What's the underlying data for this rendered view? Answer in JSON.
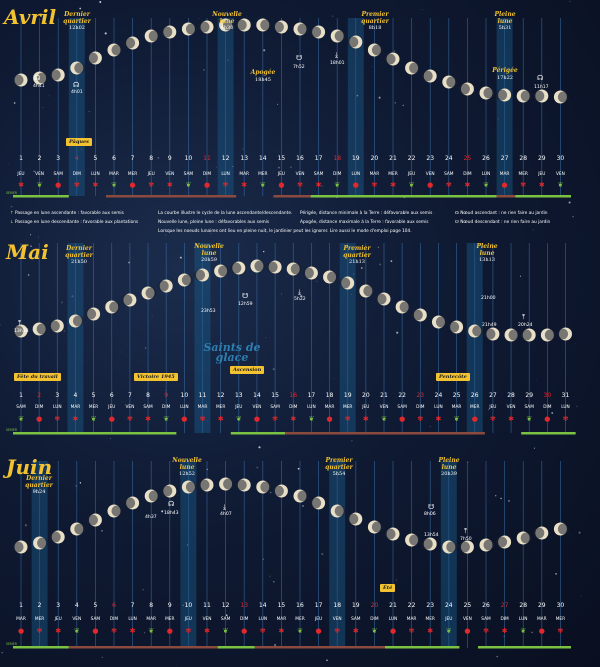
{
  "months": [
    {
      "name": "Avril",
      "days": [
        "1",
        "2",
        "3",
        "4",
        "5",
        "6",
        "7",
        "8",
        "9",
        "10",
        "11",
        "12",
        "13",
        "14",
        "15",
        "16",
        "17",
        "18",
        "19",
        "20",
        "21",
        "22",
        "23",
        "24",
        "25",
        "26",
        "27",
        "28",
        "29",
        "30"
      ],
      "weekdays": [
        "JEU",
        "VEN",
        "SAM",
        "DIM",
        "LUN",
        "MAR",
        "MER",
        "JEU",
        "VEN",
        "SAM",
        "DIM",
        "LUN",
        "MAR",
        "MER",
        "JEU",
        "VEN",
        "SAM",
        "DIM",
        "LUN",
        "MAR",
        "MER",
        "JEU",
        "VEN",
        "SAM",
        "DIM",
        "LUN",
        "MAR",
        "MER",
        "JEU",
        "VEN"
      ],
      "red_days": [
        4,
        11,
        18,
        25
      ],
      "moon_height": [
        40,
        42,
        45,
        52,
        62,
        70,
        77,
        84,
        88,
        91,
        93,
        95,
        95,
        95,
        93,
        91,
        88,
        84,
        78,
        70,
        61,
        52,
        44,
        38,
        31,
        27,
        25,
        24,
        24,
        23
      ],
      "phases": [
        {
          "label": "Dernier quartier",
          "time": "12h02"
        },
        {
          "label": "Nouvelle lune",
          "time": "4h30"
        },
        {
          "label": "Premier quartier",
          "time": "8h18"
        },
        {
          "label": "Pleine lune",
          "time": "5h31"
        }
      ],
      "markers": [
        "4h41",
        "4h01",
        "18h45",
        "7h52",
        "18h01",
        "17h22",
        "11h17"
      ],
      "marker_names": [
        "Périgée",
        "Apogée"
      ],
      "event": "Pâques",
      "planter": "PLANTER",
      "semer": "SEMER"
    },
    {
      "name": "Mai",
      "days": [
        "1",
        "2",
        "3",
        "4",
        "5",
        "6",
        "7",
        "8",
        "9",
        "10",
        "11",
        "12",
        "13",
        "14",
        "15",
        "16",
        "17",
        "18",
        "19",
        "20",
        "21",
        "22",
        "23",
        "24",
        "25",
        "26",
        "27",
        "28",
        "29",
        "30",
        "31"
      ],
      "weekdays": [
        "SAM",
        "DIM",
        "LUN",
        "MAR",
        "MER",
        "JEU",
        "VEN",
        "SAM",
        "DIM",
        "LUN",
        "MAR",
        "MER",
        "JEU",
        "VEN",
        "SAM",
        "DIM",
        "LUN",
        "MAR",
        "MER",
        "JEU",
        "VEN",
        "SAM",
        "DIM",
        "LUN",
        "MAR",
        "MER",
        "JEU",
        "VEN",
        "SAM",
        "DIM",
        "LUN"
      ],
      "red_days": [
        2,
        9,
        16,
        23,
        30
      ],
      "moon_height": [
        28,
        30,
        33,
        38,
        45,
        52,
        59,
        66,
        73,
        79,
        84,
        88,
        91,
        93,
        92,
        90,
        86,
        82,
        76,
        68,
        60,
        52,
        44,
        37,
        32,
        28,
        25,
        24,
        24,
        24,
        25
      ],
      "phases": [
        {
          "label": "Dernier quartier",
          "time": "21h50"
        },
        {
          "label": "Nouvelle lune",
          "time": "20h59"
        },
        {
          "label": "Premier quartier",
          "time": "21h13"
        },
        {
          "label": "Pleine lune",
          "time": "13h13"
        }
      ],
      "markers": [
        "13h38",
        "23h53",
        "12h59",
        "5h22",
        "21h00",
        "21h49",
        "20h24"
      ],
      "events": [
        "Fête du travail",
        "Victoire 1945",
        "Ascension",
        "Pentecôte"
      ],
      "saints": "Saints de glace",
      "planter": "PLANTER",
      "semer": "SEMER"
    },
    {
      "name": "Juin",
      "days": [
        "1",
        "2",
        "3",
        "4",
        "5",
        "6",
        "7",
        "8",
        "9",
        "10",
        "11",
        "12",
        "13",
        "14",
        "15",
        "16",
        "17",
        "18",
        "19",
        "20",
        "21",
        "22",
        "23",
        "24",
        "25",
        "26",
        "27",
        "28",
        "29",
        "30"
      ],
      "weekdays": [
        "MAR",
        "MER",
        "JEU",
        "VEN",
        "SAM",
        "DIM",
        "LUN",
        "MAR",
        "MER",
        "JEU",
        "VEN",
        "SAM",
        "DIM",
        "LUN",
        "MAR",
        "MER",
        "JEU",
        "VEN",
        "SAM",
        "DIM",
        "LUN",
        "MAR",
        "MER",
        "JEU",
        "VEN",
        "SAM",
        "DIM",
        "LUN",
        "MAR",
        "MER"
      ],
      "red_days": [
        6,
        13,
        20,
        27
      ],
      "moon_height": [
        30,
        34,
        40,
        48,
        57,
        66,
        74,
        81,
        86,
        90,
        92,
        93,
        92,
        90,
        86,
        81,
        74,
        66,
        58,
        50,
        43,
        37,
        33,
        30,
        30,
        32,
        35,
        39,
        44,
        48
      ],
      "phases": [
        {
          "label": "Dernier quartier",
          "time": "9h24"
        },
        {
          "label": "Nouvelle lune",
          "time": "12h52"
        },
        {
          "label": "Premier quartier",
          "time": "5h54"
        },
        {
          "label": "Pleine lune",
          "time": "20h39"
        }
      ],
      "markers": [
        "4h37",
        "18h43",
        "4h07",
        "8h06",
        "13h54",
        "7h50"
      ],
      "event": "Été",
      "planter": "PLANTER",
      "semer": "SEMER"
    }
  ],
  "legend": {
    "line1": "Passage en lune ascendante : favorable aux semis",
    "line2": "Passage en lune descendante : favorable aux plantations",
    "line3": "La courbe illustre le cycle de la lune ascendante/descendante.",
    "line4": "Nouvelle lune, pleine lune : défavorables aux semis",
    "line5": "Périgée, distance minimale à la Terre : défavorable aux semis",
    "line6": "Apogée, distance maximale à la Terre : favorable aux semis",
    "line7": "Nœud ascendant : ne rien faire au jardin",
    "line8": "Nœud descendant : ne rien faire au jardin",
    "line9": "Lorsque les noeuds lunaires ont lieu en pleine nuit, le jardinier peut les ignorer. Lire aussi le mode d'emploi page 104."
  },
  "colors": {
    "accent": "#f2c230",
    "green": "#7cc242",
    "brown": "#8b4a3e",
    "red": "#e0282d",
    "column": "#1a5a8a"
  }
}
